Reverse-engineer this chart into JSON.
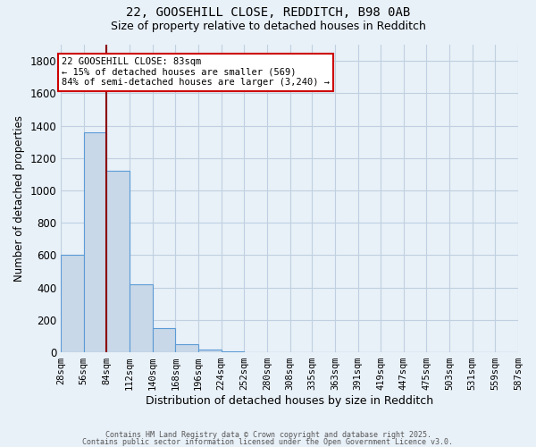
{
  "title1": "22, GOOSEHILL CLOSE, REDDITCH, B98 0AB",
  "title2": "Size of property relative to detached houses in Redditch",
  "xlabel": "Distribution of detached houses by size in Redditch",
  "ylabel": "Number of detached properties",
  "bin_edges": [
    28,
    56,
    84,
    112,
    140,
    168,
    196,
    224,
    252,
    280,
    308,
    335,
    363,
    391,
    419,
    447,
    475,
    503,
    531,
    559,
    587
  ],
  "bar_heights": [
    600,
    1360,
    1120,
    420,
    150,
    50,
    15,
    5,
    0,
    0,
    0,
    0,
    0,
    0,
    0,
    0,
    0,
    0,
    0,
    0
  ],
  "bar_color": "#c8d8e8",
  "bar_edge_color": "#5b9bd5",
  "property_size": 83,
  "vline_color": "#8b0000",
  "annotation_line1": "22 GOOSEHILL CLOSE: 83sqm",
  "annotation_line2": "← 15% of detached houses are smaller (569)",
  "annotation_line3": "84% of semi-detached houses are larger (3,240) →",
  "annotation_box_color": "#ffffff",
  "annotation_box_edge_color": "#cc0000",
  "ylim": [
    0,
    1900
  ],
  "yticks": [
    0,
    200,
    400,
    600,
    800,
    1000,
    1200,
    1400,
    1600,
    1800
  ],
  "grid_color": "#c0d0e0",
  "background_color": "#e8f0f8",
  "footer1": "Contains HM Land Registry data © Crown copyright and database right 2025.",
  "footer2": "Contains public sector information licensed under the Open Government Licence v3.0."
}
